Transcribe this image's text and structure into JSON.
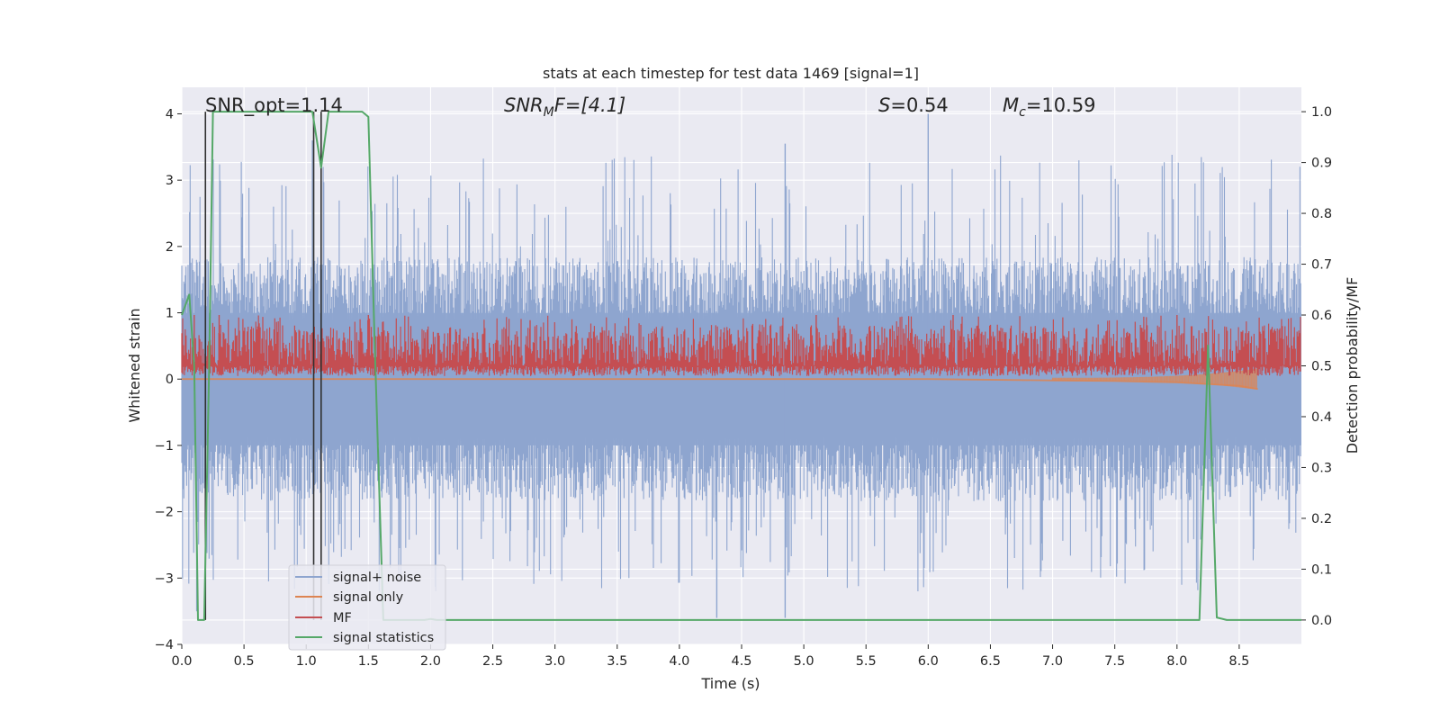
{
  "chart_data": {
    "type": "line",
    "title": "stats at each timestep for test data 1469 [signal=1]",
    "xlabel": "Time (s)",
    "ylabel": "Whitened strain",
    "y2label": "Detection probability/MF",
    "xlim": [
      0,
      9.0
    ],
    "ylim": [
      -4,
      4.4
    ],
    "y2lim": [
      -0.048,
      1.048
    ],
    "x_ticks": [
      0.0,
      0.5,
      1.0,
      1.5,
      2.0,
      2.5,
      3.0,
      3.5,
      4.0,
      4.5,
      5.0,
      5.5,
      6.0,
      6.5,
      7.0,
      7.5,
      8.0,
      8.5
    ],
    "x_tick_labels": [
      "0.0",
      "0.5",
      "1.0",
      "1.5",
      "2.0",
      "2.5",
      "3.0",
      "3.5",
      "4.0",
      "4.5",
      "5.0",
      "5.5",
      "6.0",
      "6.5",
      "7.0",
      "7.5",
      "8.0",
      "8.5"
    ],
    "y_ticks": [
      4,
      3,
      2,
      1,
      0,
      -1,
      -2,
      -3,
      -4
    ],
    "y_tick_labels": [
      "4",
      "3",
      "2",
      "1",
      "0",
      "−1",
      "−2",
      "−3",
      "−4"
    ],
    "y2_ticks": [
      1.0,
      0.9,
      0.8,
      0.7,
      0.6,
      0.5,
      0.4,
      0.3,
      0.2,
      0.1,
      0.0
    ],
    "y2_tick_labels": [
      "1.0",
      "0.9",
      "0.8",
      "0.7",
      "0.6",
      "0.5",
      "0.4",
      "0.3",
      "0.2",
      "0.1",
      "0.0"
    ],
    "grid": true,
    "legend_position": "lower-left",
    "annotations": {
      "snr_opt": "SNR_opt=1.14",
      "snr_mf_main": "SNR",
      "snr_mf_sub": "M",
      "snr_mf_rest": "F=[4.1]",
      "s_main": "S",
      "s_rest": "=0.54",
      "mc_main": "M",
      "mc_sub": "c",
      "mc_rest": "=10.59"
    },
    "series": [
      {
        "name": "signal+ noise",
        "color": "#8ea5cf",
        "envelope": {
          "typical_abs": 1.6,
          "typical_peak_max": 3.5,
          "min_extreme": -3.6,
          "max_extreme": 4.0
        },
        "description_values": {
          "spikes": [
            [
              1.05,
              3.6
            ],
            [
              4.85,
              3.55
            ],
            [
              6.0,
              4.0
            ],
            [
              4.3,
              -3.6
            ],
            [
              4.85,
              -3.6
            ],
            [
              0.12,
              -3.5
            ]
          ]
        }
      },
      {
        "name": "signal only",
        "color": "#dd8452",
        "points": [
          [
            0.0,
            0.0
          ],
          [
            6.0,
            0.0
          ],
          [
            7.0,
            -0.02
          ],
          [
            7.5,
            -0.03
          ],
          [
            8.0,
            -0.05
          ],
          [
            8.5,
            -0.1
          ],
          [
            8.65,
            -0.15
          ]
        ]
      },
      {
        "name": "MF",
        "color": "#c44e52",
        "band_min": 0.48,
        "band_typ_low": 0.5,
        "band_typ_high": 0.58,
        "band_peaks": [
          [
            0.1,
            0.6
          ],
          [
            0.3,
            0.6
          ],
          [
            1.5,
            0.6
          ],
          [
            2.8,
            0.59
          ],
          [
            5.1,
            0.6
          ],
          [
            6.2,
            0.6
          ],
          [
            8.0,
            0.6
          ]
        ]
      },
      {
        "name": "signal statistics",
        "color": "#55a868",
        "points": [
          [
            0.0,
            0.6
          ],
          [
            0.06,
            0.64
          ],
          [
            0.1,
            0.5
          ],
          [
            0.13,
            0.0
          ],
          [
            0.18,
            0.0
          ],
          [
            0.22,
            0.5
          ],
          [
            0.25,
            1.0
          ],
          [
            0.95,
            1.0
          ],
          [
            1.05,
            1.0
          ],
          [
            1.12,
            0.89
          ],
          [
            1.18,
            1.0
          ],
          [
            1.45,
            1.0
          ],
          [
            1.5,
            0.99
          ],
          [
            1.55,
            0.55
          ],
          [
            1.62,
            0.0
          ],
          [
            1.95,
            0.0
          ],
          [
            2.0,
            0.002
          ],
          [
            2.05,
            0.0
          ],
          [
            8.18,
            0.0
          ],
          [
            8.25,
            0.54
          ],
          [
            8.32,
            0.005
          ],
          [
            8.4,
            0.0
          ],
          [
            9.0,
            0.0
          ]
        ]
      },
      {
        "name": "vertical markers",
        "color": "#303030",
        "x": [
          0.19,
          1.06,
          1.12
        ],
        "from_y": 0.0,
        "to_y": 1.0
      }
    ],
    "legend": [
      "signal+ noise",
      "signal only",
      "MF",
      "signal statistics"
    ]
  }
}
